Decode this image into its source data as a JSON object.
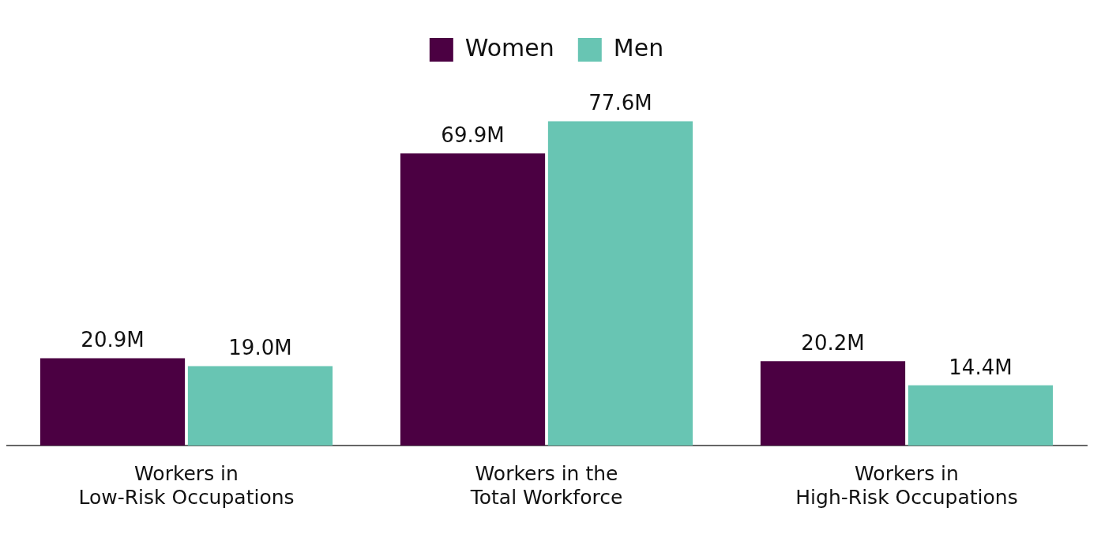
{
  "chart_data": {
    "type": "bar",
    "categories": [
      "Workers in\nLow-Risk Occupations",
      "Workers in the\nTotal Workforce",
      "Workers in\nHigh-Risk Occupations"
    ],
    "series": [
      {
        "name": "Women",
        "color": "#4b0042",
        "values": [
          20.9,
          69.9,
          20.2
        ],
        "value_labels": [
          "20.9M",
          "69.9M",
          "20.2M"
        ]
      },
      {
        "name": "Men",
        "color": "#68c5b3",
        "values": [
          19.0,
          77.6,
          14.4
        ],
        "value_labels": [
          "19.0M",
          "77.6M",
          "14.4M"
        ]
      }
    ],
    "legend": "top",
    "grid": false
  }
}
